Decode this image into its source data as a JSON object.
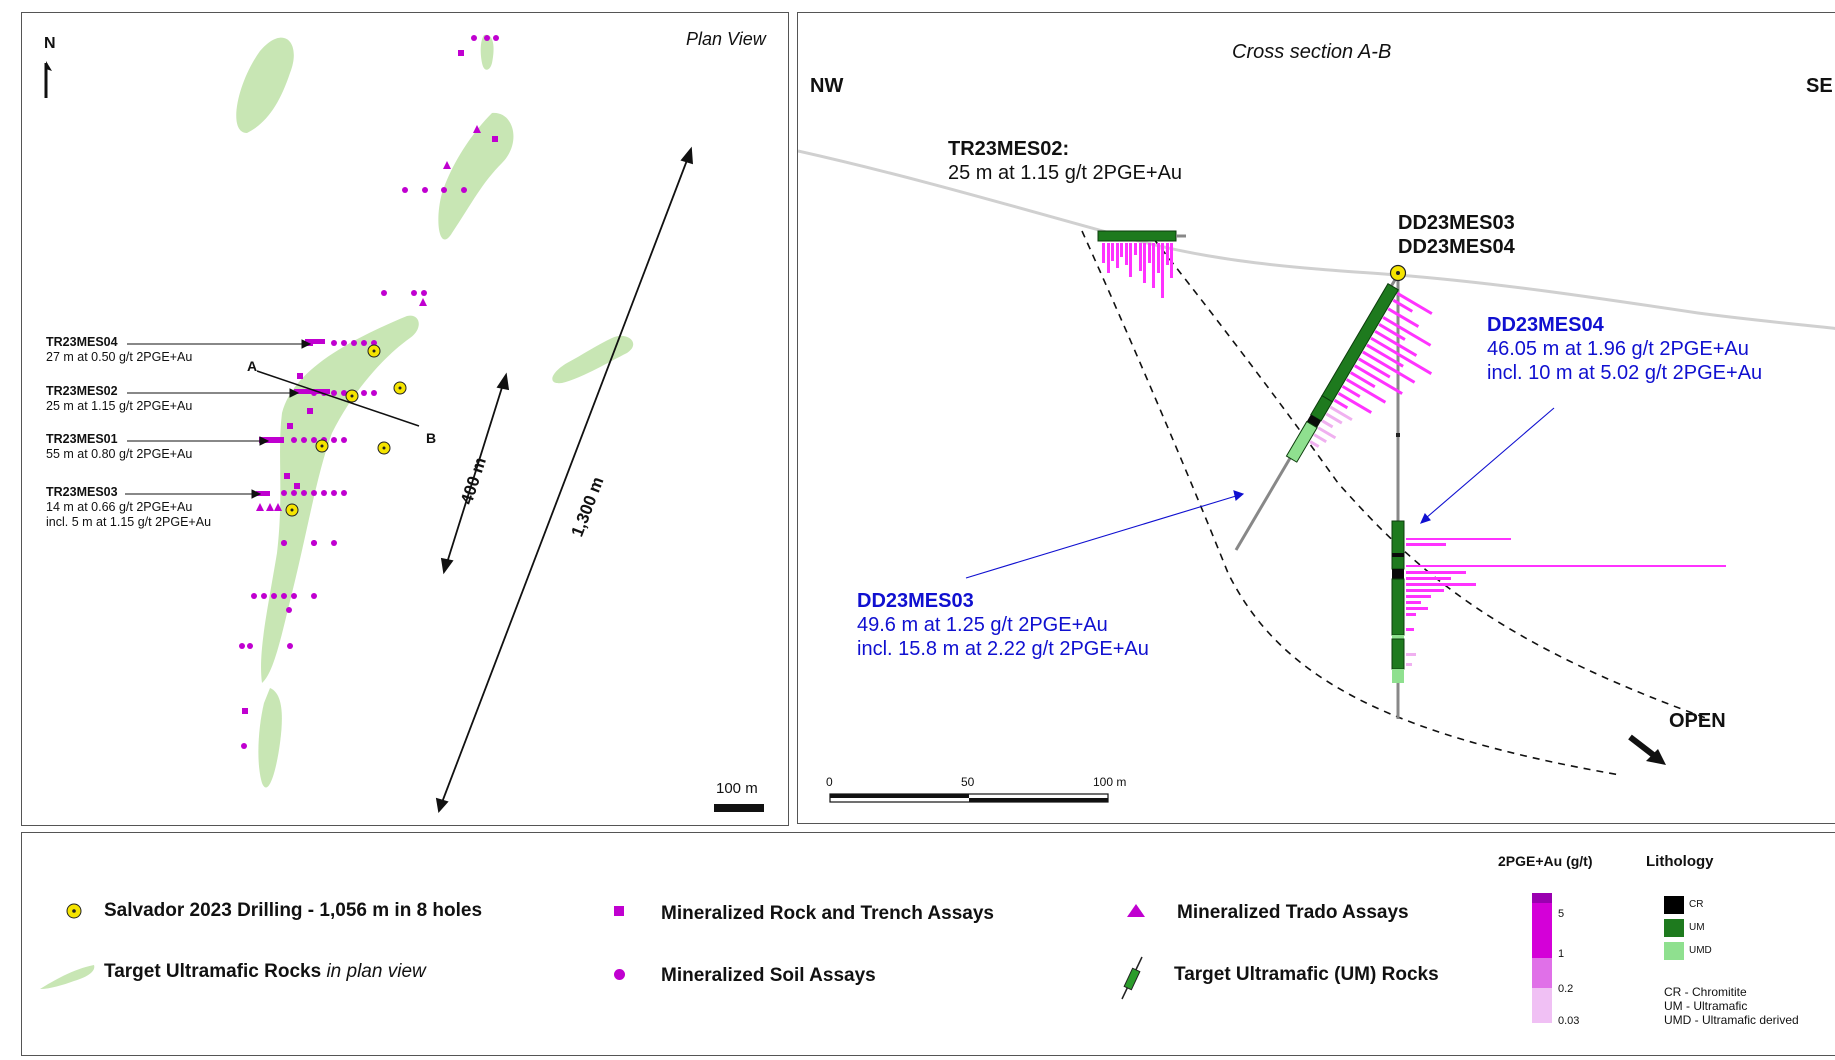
{
  "plan": {
    "title": "Plan View",
    "north": "N",
    "trenches": [
      {
        "id": "TR23MES04",
        "lines": [
          "27 m at 0.50 g/t 2PGE+Au"
        ]
      },
      {
        "id": "TR23MES02",
        "lines": [
          "25 m at 1.15 g/t 2PGE+Au"
        ]
      },
      {
        "id": "TR23MES01",
        "lines": [
          "55 m at 0.80 g/t 2PGE+Au"
        ]
      },
      {
        "id": "TR23MES03",
        "lines": [
          "14 m at 0.66 g/t 2PGE+Au",
          "incl. 5 m at 1.15 g/t 2PGE+Au"
        ]
      }
    ],
    "section_start": "A",
    "section_end": "B",
    "dist_400": "400 m",
    "dist_1300": "1,300 m",
    "scale_label": "100 m"
  },
  "section": {
    "title": "Cross section A-B",
    "left_dir": "NW",
    "right_dir": "SE",
    "trench_title": "TR23MES02:",
    "trench_result": "25 m at 1.15 g/t 2PGE+Au",
    "collar_holes": [
      "DD23MES03",
      "DD23MES04"
    ],
    "dd04": {
      "title": "DD23MES04",
      "lines": [
        "46.05 m at 1.96 g/t 2PGE+Au",
        "incl. 10 m at 5.02 g/t 2PGE+Au"
      ]
    },
    "dd03": {
      "title": "DD23MES03",
      "lines": [
        "49.6 m at 1.25 g/t 2PGE+Au",
        "incl. 15.8 m at 2.22 g/t 2PGE+Au"
      ]
    },
    "open_label": "OPEN",
    "scale_ticks": [
      "0",
      "50",
      "100 m"
    ]
  },
  "legend": {
    "drilling": "Salvador 2023 Drilling - 1,056 m in 8 holes",
    "ultramafic_bold": "Target Ultramafic Rocks",
    "ultramafic_italic": "in plan view",
    "rock_trench": "Mineralized Rock and Trench Assays",
    "soil": "Mineralized Soil Assays",
    "trado": "Mineralized Trado Assays",
    "um_rocks": "Target Ultramafic (UM) Rocks",
    "grade_title": "2PGE+Au (g/t)",
    "grade_ticks": [
      "5",
      "1",
      "0.2",
      "0.03"
    ],
    "lith_title": "Lithology",
    "lith_items": [
      "CR",
      "UM",
      "UMD"
    ],
    "lith_notes": [
      "CR - Chromitite",
      "UM - Ultramafic",
      "UMD - Ultramafic derived"
    ]
  },
  "colors": {
    "ultramafic_fill": "#c8e6b4",
    "magenta": "#c000d0",
    "pink": "#ff33ff",
    "dark_green": "#1e7a1e",
    "light_green": "#8fe08f",
    "blue_text": "#1010d0",
    "collar_yellow": "#f5e400",
    "chromitite": "#000000"
  }
}
